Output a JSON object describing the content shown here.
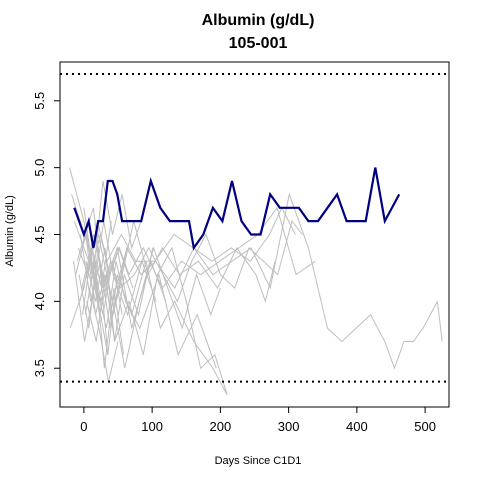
{
  "chart_data": {
    "type": "line",
    "title": "Albumin (g/dL)",
    "subtitle": "105-001",
    "xlabel": "Days Since C1D1",
    "ylabel": "Albumin (g/dL)",
    "xlim": [
      -35,
      535
    ],
    "ylim": [
      3.21,
      5.79
    ],
    "x_ticks": [
      0,
      100,
      200,
      300,
      400,
      500
    ],
    "y_ticks": [
      3.5,
      4.0,
      4.5,
      5.0,
      5.5
    ],
    "grid": false,
    "reference_lines": [
      {
        "y": 5.7,
        "style": "dotted",
        "color": "#000000"
      },
      {
        "y": 3.4,
        "style": "dotted",
        "color": "#000000"
      }
    ],
    "colors": {
      "highlight": "#000080",
      "background_series": "#bebebe"
    },
    "highlight_series": {
      "name": "105-001",
      "x": [
        -14,
        0,
        7,
        14,
        21,
        28,
        35,
        42,
        49,
        56,
        63,
        70,
        84,
        98,
        112,
        126,
        140,
        154,
        161,
        175,
        189,
        203,
        217,
        231,
        245,
        259,
        273,
        287,
        301,
        315,
        329,
        343,
        357,
        371,
        385,
        399,
        413,
        427,
        441,
        462
      ],
      "y": [
        4.7,
        4.5,
        4.6,
        4.4,
        4.6,
        4.6,
        4.9,
        4.9,
        4.8,
        4.6,
        4.6,
        4.6,
        4.6,
        4.9,
        4.7,
        4.6,
        4.6,
        4.6,
        4.4,
        4.5,
        4.7,
        4.6,
        4.9,
        4.6,
        4.5,
        4.5,
        4.8,
        4.7,
        4.7,
        4.7,
        4.6,
        4.6,
        4.7,
        4.8,
        4.6,
        4.6,
        4.6,
        5.0,
        4.6,
        4.8
      ]
    },
    "background_series": [
      {
        "x": [
          -21,
          0,
          14,
          28,
          42,
          56
        ],
        "y": [
          5.0,
          4.6,
          4.2,
          3.9,
          4.3,
          3.9
        ]
      },
      {
        "x": [
          -18,
          7,
          21,
          35
        ],
        "y": [
          4.8,
          4.4,
          4.0,
          3.6
        ]
      },
      {
        "x": [
          -14,
          7,
          21,
          42,
          63,
          84
        ],
        "y": [
          4.6,
          4.3,
          4.5,
          4.0,
          4.4,
          4.2
        ]
      },
      {
        "x": [
          -10,
          14,
          28,
          49,
          70,
          98,
          120
        ],
        "y": [
          4.3,
          4.7,
          4.1,
          4.4,
          3.8,
          4.3,
          4.0
        ]
      },
      {
        "x": [
          -7,
          7,
          21,
          35,
          49,
          70,
          91,
          112,
          133,
          161,
          189,
          210
        ],
        "y": [
          4.2,
          3.8,
          4.4,
          3.6,
          4.2,
          3.9,
          4.3,
          3.8,
          4.0,
          3.7,
          3.5,
          3.3
        ]
      },
      {
        "x": [
          -20,
          0,
          14,
          28,
          42,
          63,
          84,
          105,
          133,
          161,
          189,
          217,
          245,
          273,
          301,
          329,
          357,
          378,
          399,
          420,
          441,
          455,
          469,
          483,
          497,
          518
        ],
        "y": [
          3.8,
          4.1,
          4.5,
          4.2,
          3.9,
          4.4,
          4.2,
          4.3,
          4.1,
          4.4,
          4.2,
          4.3,
          4.4,
          4.1,
          4.8,
          4.4,
          3.8,
          3.7,
          3.8,
          3.9,
          3.7,
          3.5,
          3.7,
          3.7,
          3.8,
          4.0
        ]
      },
      {
        "x": [
          518,
          525
        ],
        "y": [
          4.0,
          3.7
        ]
      },
      {
        "x": [
          -5,
          10,
          24,
          38,
          52,
          73,
          94,
          115,
          140,
          168,
          196,
          224,
          252,
          266,
          280
        ],
        "y": [
          4.5,
          4.0,
          4.3,
          3.8,
          4.1,
          4.6,
          4.2,
          4.4,
          4.2,
          4.3,
          4.1,
          4.4,
          4.2,
          4.0,
          4.3
        ]
      },
      {
        "x": [
          0,
          14,
          28,
          42,
          56,
          70,
          84
        ],
        "y": [
          4.7,
          4.2,
          4.9,
          4.5,
          4.8,
          4.4,
          4.6
        ]
      },
      {
        "x": [
          -12,
          3,
          17,
          31,
          45,
          66,
          87,
          108,
          129,
          150,
          171,
          192,
          210
        ],
        "y": [
          4.2,
          4.5,
          3.9,
          4.2,
          3.7,
          4.0,
          3.6,
          4.2,
          4.4,
          4.0,
          3.5,
          3.6,
          3.3
        ]
      },
      {
        "x": [
          2,
          16,
          30,
          44,
          58
        ],
        "y": [
          3.9,
          4.3,
          3.5,
          4.1,
          3.6
        ]
      },
      {
        "x": [
          -8,
          6,
          20,
          34,
          55,
          76,
          104,
          132,
          160,
          188,
          216,
          244,
          272,
          290,
          310
        ],
        "y": [
          4.4,
          4.2,
          4.6,
          4.3,
          4.5,
          4.3,
          4.3,
          4.5,
          4.4,
          4.3,
          4.4,
          4.3,
          4.5,
          4.7,
          4.5
        ]
      },
      {
        "x": [
          4,
          18,
          32,
          46,
          60,
          81,
          102,
          123,
          144,
          165,
          186,
          200
        ],
        "y": [
          4.0,
          3.7,
          4.2,
          3.9,
          3.5,
          4.0,
          4.4,
          4.1,
          3.8,
          4.2,
          3.9,
          4.1
        ]
      },
      {
        "x": [
          -3,
          11,
          25,
          39,
          53,
          74,
          95,
          116,
          137,
          158,
          179,
          200,
          221,
          242,
          263,
          284,
          305,
          320
        ],
        "y": [
          4.1,
          4.4,
          4.0,
          4.3,
          4.1,
          4.2,
          4.4,
          4.2,
          4.0,
          4.3,
          4.5,
          4.2,
          4.1,
          4.4,
          4.3,
          4.2,
          4.6,
          4.5
        ]
      },
      {
        "x": [
          8,
          22,
          36,
          50
        ],
        "y": [
          4.1,
          3.8,
          3.4,
          3.7
        ]
      },
      {
        "x": [
          -15,
          1,
          15,
          29,
          43,
          64,
          85,
          106
        ],
        "y": [
          4.3,
          3.7,
          4.1,
          4.6,
          4.2,
          3.9,
          4.3,
          4.0
        ]
      },
      {
        "x": [
          5,
          19,
          33,
          47,
          61,
          82,
          110,
          138,
          166,
          194
        ],
        "y": [
          4.5,
          4.1,
          3.8,
          4.3,
          4.0,
          3.8,
          4.2,
          3.6,
          3.9,
          3.5
        ]
      },
      {
        "x": [
          -2,
          12,
          26,
          40
        ],
        "y": [
          3.9,
          4.4,
          4.1,
          4.6
        ]
      },
      {
        "x": [
          10,
          24,
          38,
          52,
          66,
          87,
          115,
          143,
          171,
          199,
          227,
          255,
          283,
          311,
          339
        ],
        "y": [
          4.2,
          4.5,
          4.2,
          4.4,
          4.2,
          4.4,
          4.1,
          4.3,
          4.2,
          4.3,
          4.4,
          4.5,
          4.7,
          4.2,
          4.3
        ]
      },
      {
        "x": [
          -6,
          9,
          23,
          37,
          51,
          72
        ],
        "y": [
          4.0,
          4.3,
          3.9,
          4.2,
          4.4,
          4.1
        ]
      },
      {
        "x": [
          3,
          17,
          31,
          45,
          59,
          80,
          101
        ],
        "y": [
          4.3,
          4.0,
          4.4,
          3.7,
          4.2,
          3.9,
          4.4
        ]
      }
    ]
  }
}
